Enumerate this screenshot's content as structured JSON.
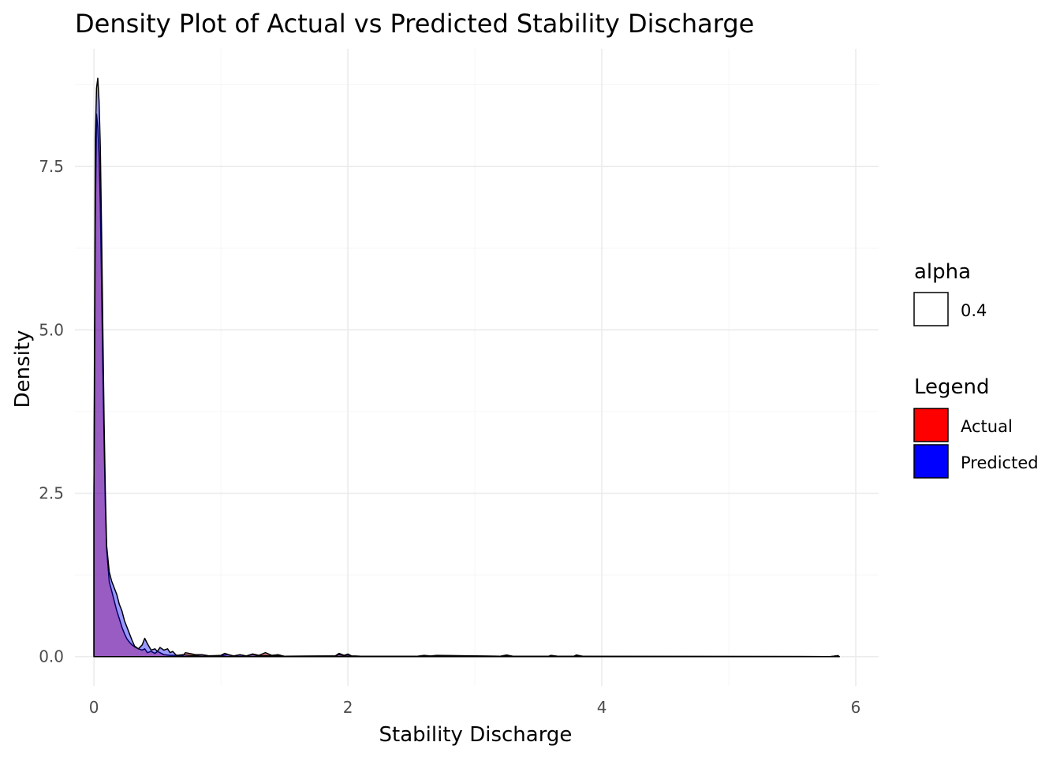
{
  "chart_data": {
    "type": "area",
    "title": "Density Plot of Actual vs Predicted Stability Discharge",
    "xlabel": "Stability Discharge",
    "ylabel": "Density",
    "xlim": [
      -0.15,
      6.18
    ],
    "ylim": [
      -0.45,
      9.3
    ],
    "x_ticks": [
      0,
      2,
      4,
      6
    ],
    "x_tick_labels": [
      "0",
      "2",
      "4",
      "6"
    ],
    "y_ticks": [
      0.0,
      2.5,
      5.0,
      7.5
    ],
    "y_tick_labels": [
      "0.0",
      "2.5",
      "5.0",
      "7.5"
    ],
    "grid": true,
    "legends": [
      {
        "title": "alpha",
        "entries": [
          {
            "label": "0.4",
            "fill": "#ffffff"
          }
        ]
      },
      {
        "title": "Legend",
        "entries": [
          {
            "label": "Actual",
            "fill": "#ff0000"
          },
          {
            "label": "Predicted",
            "fill": "#0000ff"
          }
        ]
      }
    ],
    "legend_position": "right",
    "fill_alpha": 0.4,
    "series": [
      {
        "name": "Actual",
        "color": "#ff0000",
        "x": [
          0.0,
          0.01,
          0.02,
          0.03,
          0.04,
          0.05,
          0.06,
          0.07,
          0.08,
          0.09,
          0.1,
          0.12,
          0.14,
          0.16,
          0.18,
          0.2,
          0.22,
          0.24,
          0.26,
          0.28,
          0.3,
          0.32,
          0.35,
          0.38,
          0.4,
          0.42,
          0.45,
          0.48,
          0.5,
          0.55,
          0.6,
          0.65,
          0.7,
          0.72,
          0.75,
          0.8,
          0.85,
          0.9,
          1.0,
          1.05,
          1.1,
          1.15,
          1.2,
          1.25,
          1.3,
          1.35,
          1.4,
          1.45,
          1.5,
          1.9,
          1.93,
          1.97,
          2.0,
          2.03,
          2.1,
          2.55,
          2.6,
          2.65,
          2.7,
          3.2,
          3.25,
          3.3,
          3.58,
          3.6,
          3.65,
          3.78,
          3.8,
          3.85,
          5.8,
          5.86,
          5.87
        ],
        "y": [
          2.4,
          6.6,
          8.3,
          8.1,
          7.7,
          6.9,
          5.7,
          4.4,
          3.3,
          2.3,
          1.65,
          1.15,
          1.0,
          0.85,
          0.7,
          0.58,
          0.45,
          0.35,
          0.27,
          0.22,
          0.18,
          0.15,
          0.12,
          0.1,
          0.12,
          0.06,
          0.08,
          0.05,
          0.08,
          0.03,
          0.02,
          0.02,
          0.01,
          0.06,
          0.05,
          0.03,
          0.03,
          0.015,
          0.01,
          0.03,
          0.01,
          0.025,
          0.01,
          0.04,
          0.02,
          0.06,
          0.02,
          0.03,
          0.005,
          0.01,
          0.05,
          0.02,
          0.04,
          0.01,
          0.005,
          0.005,
          0.02,
          0.01,
          0.02,
          0.005,
          0.025,
          0.005,
          0.005,
          0.02,
          0.005,
          0.005,
          0.025,
          0.005,
          0.0,
          0.015,
          0.0
        ]
      },
      {
        "name": "Predicted",
        "color": "#0000ff",
        "x": [
          0.0,
          0.01,
          0.02,
          0.03,
          0.04,
          0.05,
          0.06,
          0.07,
          0.08,
          0.09,
          0.1,
          0.12,
          0.14,
          0.16,
          0.18,
          0.2,
          0.22,
          0.24,
          0.26,
          0.28,
          0.3,
          0.32,
          0.35,
          0.38,
          0.4,
          0.42,
          0.45,
          0.48,
          0.5,
          0.52,
          0.55,
          0.58,
          0.6,
          0.62,
          0.65,
          0.7,
          0.75,
          0.8,
          0.85,
          0.9,
          1.0,
          1.03,
          1.06,
          1.1,
          1.15,
          1.2,
          1.25,
          1.3,
          1.35,
          1.4,
          1.45,
          1.5,
          1.9,
          1.93,
          1.97,
          2.0,
          2.03,
          2.1,
          2.55,
          2.6,
          2.65,
          2.7,
          3.2,
          3.25,
          3.3,
          3.58,
          3.6,
          3.65,
          3.78,
          3.8,
          3.85,
          5.8,
          5.86,
          5.87
        ],
        "y": [
          2.4,
          7.9,
          8.7,
          8.85,
          8.5,
          7.8,
          6.5,
          5.0,
          3.6,
          2.5,
          1.7,
          1.3,
          1.15,
          1.05,
          0.95,
          0.8,
          0.7,
          0.55,
          0.45,
          0.35,
          0.25,
          0.16,
          0.12,
          0.18,
          0.28,
          0.2,
          0.1,
          0.12,
          0.08,
          0.14,
          0.1,
          0.12,
          0.06,
          0.08,
          0.02,
          0.03,
          0.02,
          0.015,
          0.025,
          0.01,
          0.02,
          0.05,
          0.03,
          0.01,
          0.03,
          0.01,
          0.03,
          0.01,
          0.02,
          0.01,
          0.02,
          0.005,
          0.01,
          0.03,
          0.015,
          0.025,
          0.01,
          0.005,
          0.005,
          0.015,
          0.005,
          0.015,
          0.005,
          0.02,
          0.005,
          0.005,
          0.015,
          0.005,
          0.005,
          0.02,
          0.005,
          0.0,
          0.015,
          0.0
        ]
      }
    ]
  }
}
